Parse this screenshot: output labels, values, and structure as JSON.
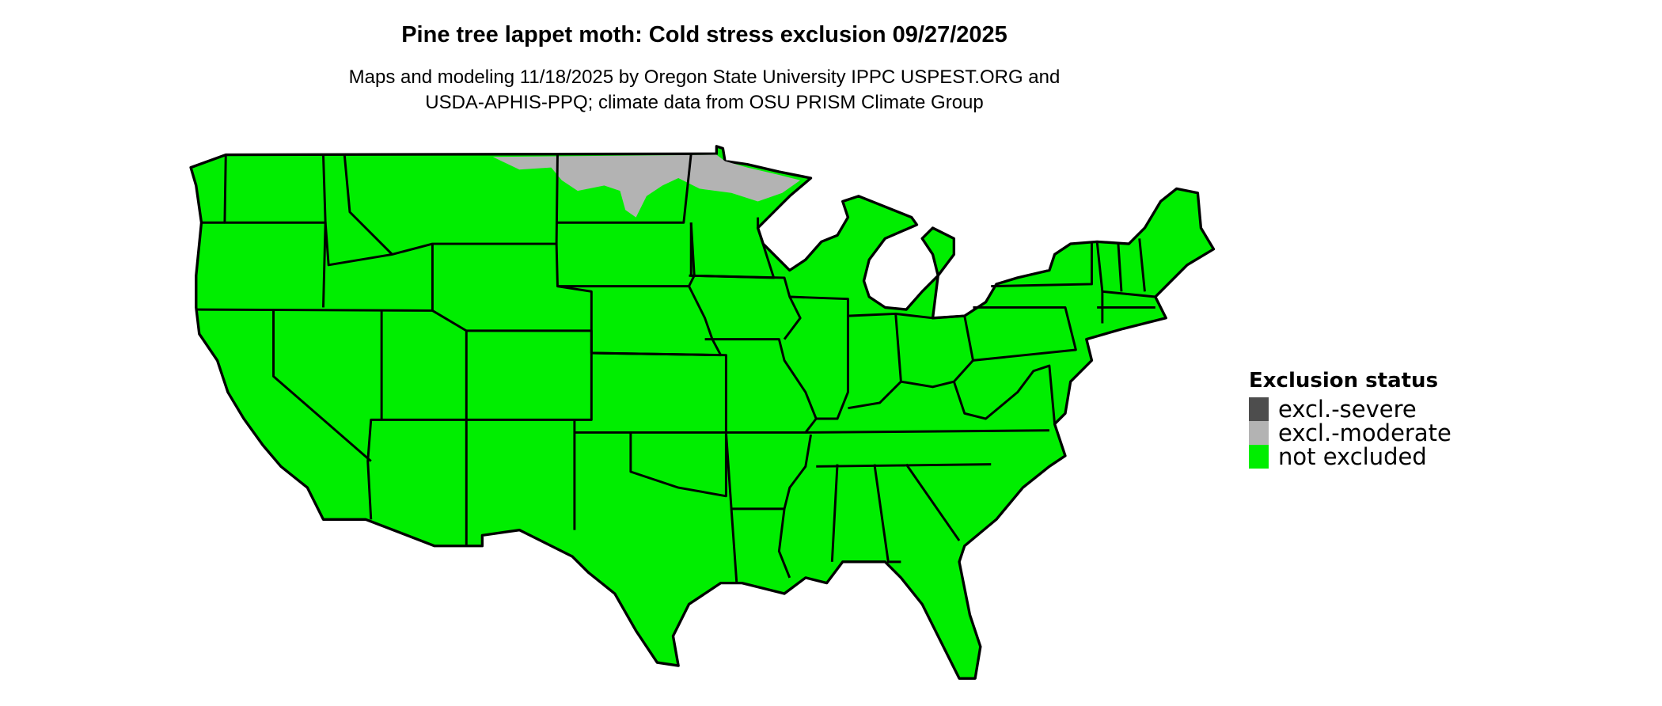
{
  "title": "Pine tree lappet moth: Cold stress exclusion 09/27/2025",
  "subtitle_lines": [
    "Maps and modeling 11/18/2025 by Oregon State University IPPC USPEST.ORG and",
    "USDA-APHIS-PPQ; climate data from OSU PRISM Climate Group"
  ],
  "legend": {
    "title": "Exclusion status",
    "items": [
      {
        "label": "excl.-severe",
        "color": "#4d4d4d"
      },
      {
        "label": "excl.-moderate",
        "color": "#b3b3b3"
      },
      {
        "label": "not excluded",
        "color": "#00ee00"
      }
    ]
  },
  "map": {
    "region": "Contiguous United States",
    "predominant_status": "not excluded",
    "moderate_exclusion_area": "northern Minnesota / northeastern North Dakota border"
  }
}
